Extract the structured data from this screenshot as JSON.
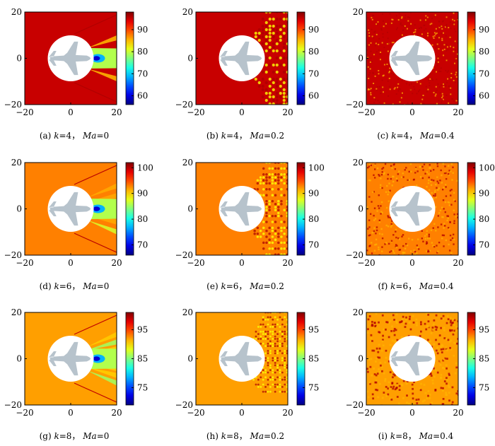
{
  "figure": {
    "panels": [
      {
        "caption_label": "(a)",
        "k": "4",
        "ma": "0",
        "pattern": "ma0"
      },
      {
        "caption_label": "(b)",
        "k": "4",
        "ma": "0.2",
        "pattern": "ma02"
      },
      {
        "caption_label": "(c)",
        "k": "4",
        "ma": "0.4",
        "pattern": "ma04"
      },
      {
        "caption_label": "(d)",
        "k": "6",
        "ma": "0",
        "pattern": "ma0"
      },
      {
        "caption_label": "(e)",
        "k": "6",
        "ma": "0.2",
        "pattern": "ma02"
      },
      {
        "caption_label": "(f)",
        "k": "6",
        "ma": "0.4",
        "pattern": "ma04"
      },
      {
        "caption_label": "(g)",
        "k": "8",
        "ma": "0",
        "pattern": "ma0"
      },
      {
        "caption_label": "(h)",
        "k": "8",
        "ma": "0.2",
        "pattern": "ma02"
      },
      {
        "caption_label": "(i)",
        "k": "8",
        "ma": "0.4",
        "pattern": "ma04"
      }
    ],
    "caption_sep": "，",
    "k_symbol": "k",
    "ma_symbol": "Ma"
  },
  "chart_data": {
    "type": "heatmap",
    "xlim": [
      -20,
      20
    ],
    "ylim": [
      -20,
      20
    ],
    "x_ticks": [
      "−20",
      "0",
      "20"
    ],
    "y_ticks": [
      "20",
      "0",
      "−20"
    ],
    "colormap": "jet",
    "rows": [
      {
        "k": 4,
        "clim": [
          56,
          98
        ],
        "colorbar_ticks": [
          60,
          70,
          80,
          90
        ],
        "background_value": 95
      },
      {
        "k": 6,
        "clim": [
          66,
          102
        ],
        "colorbar_ticks": [
          70,
          80,
          90,
          100
        ],
        "background_value": 93
      },
      {
        "k": 8,
        "clim": [
          69,
          101
        ],
        "colorbar_ticks": [
          75,
          85,
          95
        ],
        "background_value": 92
      }
    ],
    "scatterer": {
      "shape": "circle",
      "center": [
        0,
        0
      ],
      "radius": 10,
      "content": "aircraft-silhouette"
    }
  }
}
